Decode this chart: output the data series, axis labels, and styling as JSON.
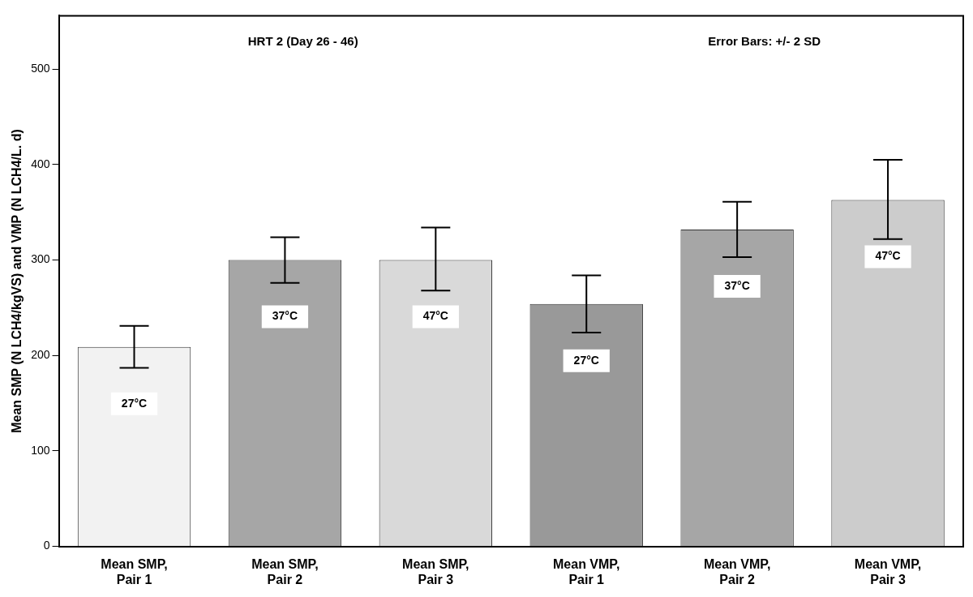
{
  "chart_data": {
    "type": "bar",
    "title": "HRT 2 (Day 26 - 46)",
    "ylabel": "Mean SMP (N LCH4/kgVS) and VMP (N LCH4/L. d)",
    "categories": [
      "Mean SMP, Pair 1",
      "Mean SMP, Pair 2",
      "Mean SMP, Pair 3",
      "Mean VMP, Pair 1",
      "Mean VMP, Pair 2",
      "Mean VMP, Pair 3"
    ],
    "values": [
      209,
      300,
      300,
      254,
      332,
      363
    ],
    "colors": [
      "#f2f2f2",
      "#a6a6a6",
      "#d9d9d9",
      "#999999",
      "#a6a6a6",
      "#cccccc"
    ],
    "errors": [
      [
        187,
        231
      ],
      [
        276,
        324
      ],
      [
        268,
        334
      ],
      [
        224,
        284
      ],
      [
        303,
        361
      ],
      [
        322,
        405
      ]
    ],
    "ylim": [
      0,
      556
    ],
    "yticks": [
      0,
      100,
      200,
      300,
      400,
      500
    ],
    "grid": false,
    "annotations": [
      "Error Bars: +/- 2 SD",
      "27°C",
      "37°C",
      "47°C",
      "27°C",
      "37°C",
      "47°C"
    ]
  }
}
